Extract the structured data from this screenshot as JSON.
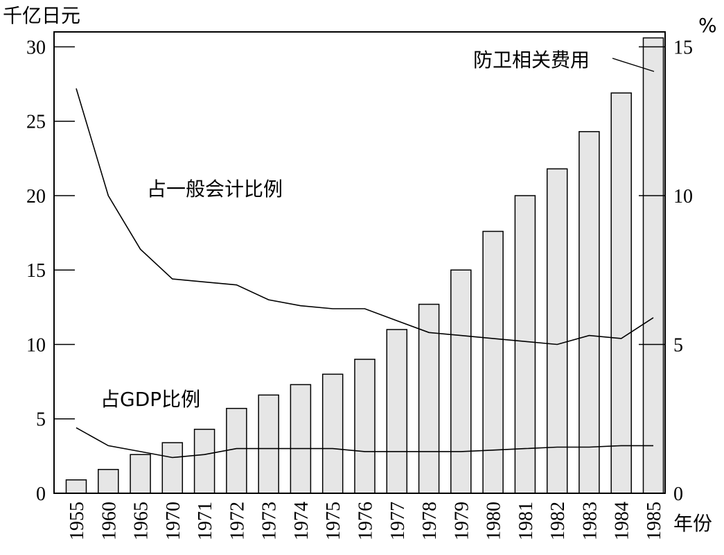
{
  "chart_data": {
    "type": "bar+line",
    "categories": [
      "1955",
      "1960",
      "1965",
      "1970",
      "1971",
      "1972",
      "1973",
      "1974",
      "1975",
      "1976",
      "1977",
      "1978",
      "1979",
      "1980",
      "1981",
      "1982",
      "1983",
      "1984",
      "1985"
    ],
    "y_left": {
      "label": "千亿日元",
      "ticks": [
        0,
        5,
        10,
        15,
        20,
        25,
        30
      ],
      "range": [
        0,
        31
      ]
    },
    "y_right": {
      "label": "%",
      "ticks": [
        0,
        5,
        10,
        15
      ],
      "range": [
        0,
        15.5
      ]
    },
    "x_axis_label": "年份",
    "series": [
      {
        "name": "防卫相关费用",
        "kind": "bar",
        "axis": "left",
        "values": [
          0.9,
          1.6,
          2.6,
          3.4,
          4.3,
          5.7,
          6.6,
          7.3,
          8.0,
          9.0,
          11.0,
          12.7,
          15.0,
          17.6,
          20.0,
          21.8,
          24.3,
          26.9,
          30.6
        ]
      },
      {
        "name": "占一般会计比例",
        "kind": "line",
        "axis": "right",
        "values": [
          13.6,
          10.0,
          8.2,
          7.2,
          7.1,
          7.0,
          6.5,
          6.3,
          6.2,
          6.2,
          5.8,
          5.4,
          5.3,
          5.2,
          5.1,
          5.0,
          5.3,
          5.2,
          5.9
        ]
      },
      {
        "name": "占GDP比例",
        "kind": "line",
        "axis": "right",
        "values": [
          2.2,
          1.6,
          1.4,
          1.2,
          1.3,
          1.5,
          1.5,
          1.5,
          1.5,
          1.4,
          1.4,
          1.4,
          1.4,
          1.45,
          1.5,
          1.55,
          1.55,
          1.6,
          1.6
        ]
      }
    ],
    "annotations": [
      {
        "text": "防卫相关费用",
        "series": "防卫相关费用"
      },
      {
        "text": "占一般会计比例",
        "series": "占一般会计比例"
      },
      {
        "text": "占GDP比例",
        "series": "占GDP比例"
      }
    ],
    "grid": false,
    "legend": "none"
  }
}
